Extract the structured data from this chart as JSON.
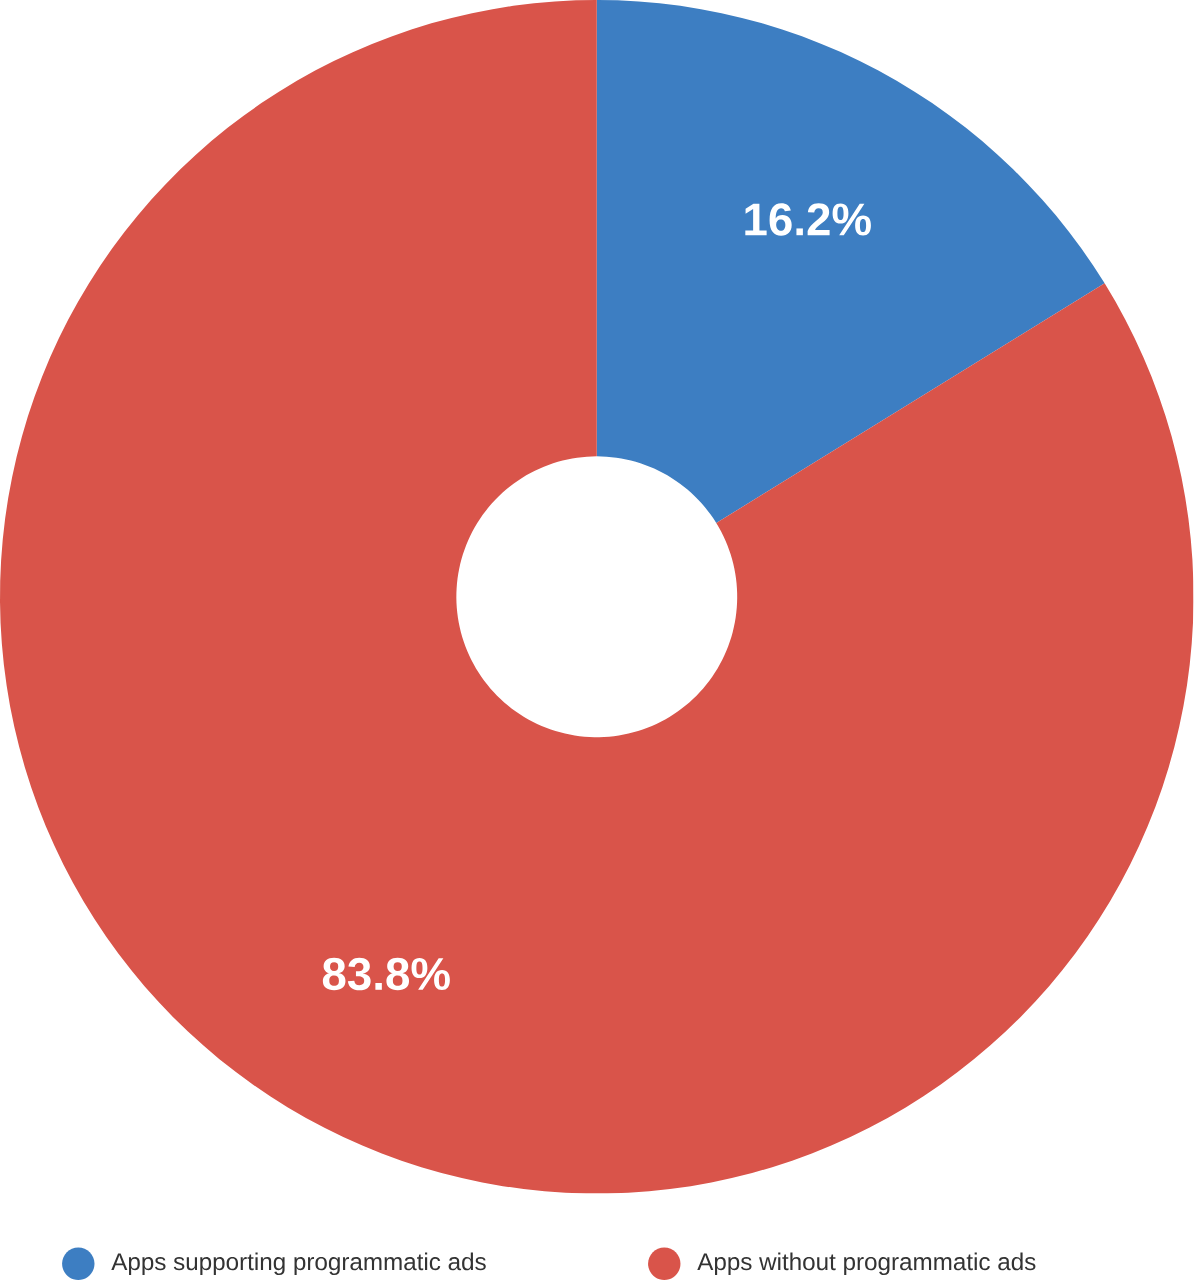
{
  "chart_data": {
    "type": "donut",
    "categories": [
      "Apps supporting programmatic ads",
      "Apps without programmatic ads"
    ],
    "values": [
      16.2,
      83.8
    ],
    "colors": [
      "#3d7ec2",
      "#d9544a"
    ],
    "value_labels": [
      "16.2%",
      "83.8%"
    ],
    "legend": "bottom"
  }
}
